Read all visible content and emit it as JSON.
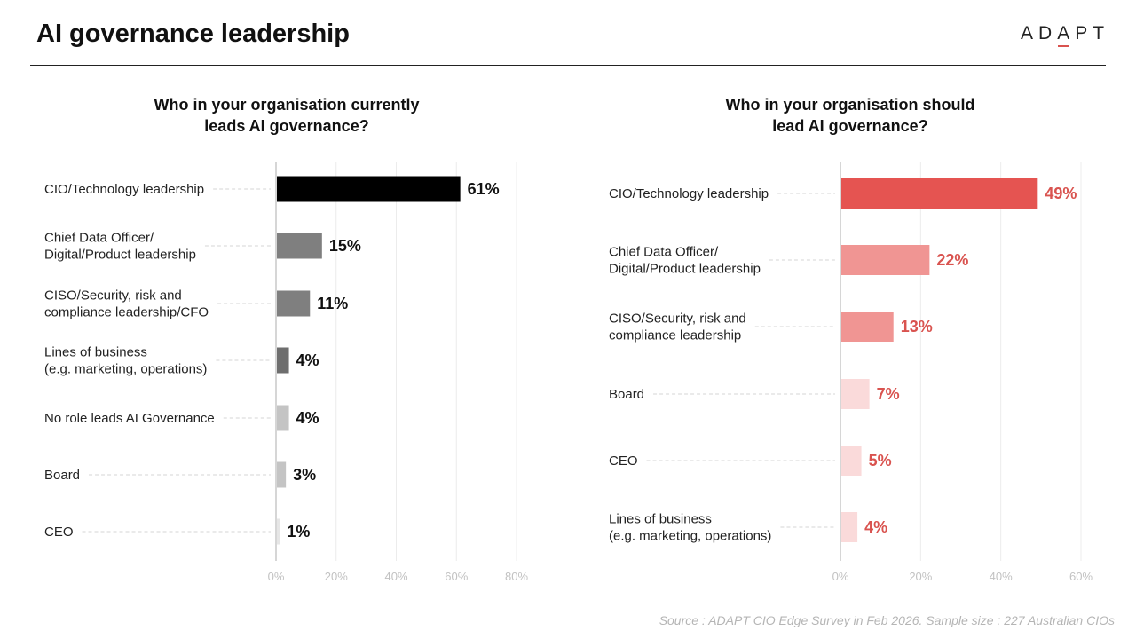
{
  "header": {
    "title": "AI governance leadership",
    "logo": [
      "A",
      "D",
      "A",
      "P",
      "T"
    ]
  },
  "footer": {
    "source": "Source : ADAPT CIO Edge Survey in Feb 2026. Sample size : 227 Australian CIOs"
  },
  "chart_data": [
    {
      "type": "bar",
      "orientation": "horizontal",
      "title": "Who in your organisation currently leads  AI governance?",
      "title_lines": [
        "Who in your organisation currently",
        "leads  AI governance?"
      ],
      "categories": [
        [
          "CIO/Technology leadership"
        ],
        [
          "Chief Data Officer/",
          "Digital/Product leadership"
        ],
        [
          "CISO/Security, risk and",
          "compliance leadership/CFO"
        ],
        [
          "Lines of business",
          "(e.g. marketing, operations)"
        ],
        [
          "No role leads AI Governance"
        ],
        [
          "Board"
        ],
        [
          "CEO"
        ]
      ],
      "values": [
        61,
        15,
        11,
        4,
        4,
        3,
        1
      ],
      "data_labels": [
        "61%",
        "15%",
        "11%",
        "4%",
        "4%",
        "3%",
        "1%"
      ],
      "bar_colors": [
        "#000000",
        "#7f7f7f",
        "#7f7f7f",
        "#6e6e6e",
        "#c4c4c4",
        "#c4c4c4",
        "#e6e6e6"
      ],
      "label_color": "#111111",
      "xlim": [
        0,
        80
      ],
      "xticks": [
        0,
        20,
        40,
        60,
        80
      ],
      "xtick_labels": [
        "0%",
        "20%",
        "40%",
        "60%",
        "80%"
      ],
      "grid": true,
      "xlabel": "",
      "ylabel": ""
    },
    {
      "type": "bar",
      "orientation": "horizontal",
      "title": "Who in your organisation should lead AI governance?",
      "title_lines": [
        "Who in your organisation should",
        "lead AI governance?"
      ],
      "categories": [
        [
          "CIO/Technology leadership"
        ],
        [
          "Chief Data Officer/",
          "Digital/Product leadership"
        ],
        [
          "CISO/Security, risk and",
          "compliance leadership"
        ],
        [
          "Board"
        ],
        [
          "CEO"
        ],
        [
          "Lines of business",
          "(e.g. marketing, operations)"
        ]
      ],
      "values": [
        49,
        22,
        13,
        7,
        5,
        4
      ],
      "data_labels": [
        "49%",
        "22%",
        "13%",
        "7%",
        "5%",
        "4%"
      ],
      "bar_colors": [
        "#e55451",
        "#f09593",
        "#f09593",
        "#fadada",
        "#fadada",
        "#fadada"
      ],
      "label_color": "#d9534f",
      "xlim": [
        0,
        60
      ],
      "xticks": [
        0,
        20,
        40,
        60
      ],
      "xtick_labels": [
        "0%",
        "20%",
        "40%",
        "60%"
      ],
      "grid": true,
      "xlabel": "",
      "ylabel": ""
    }
  ]
}
